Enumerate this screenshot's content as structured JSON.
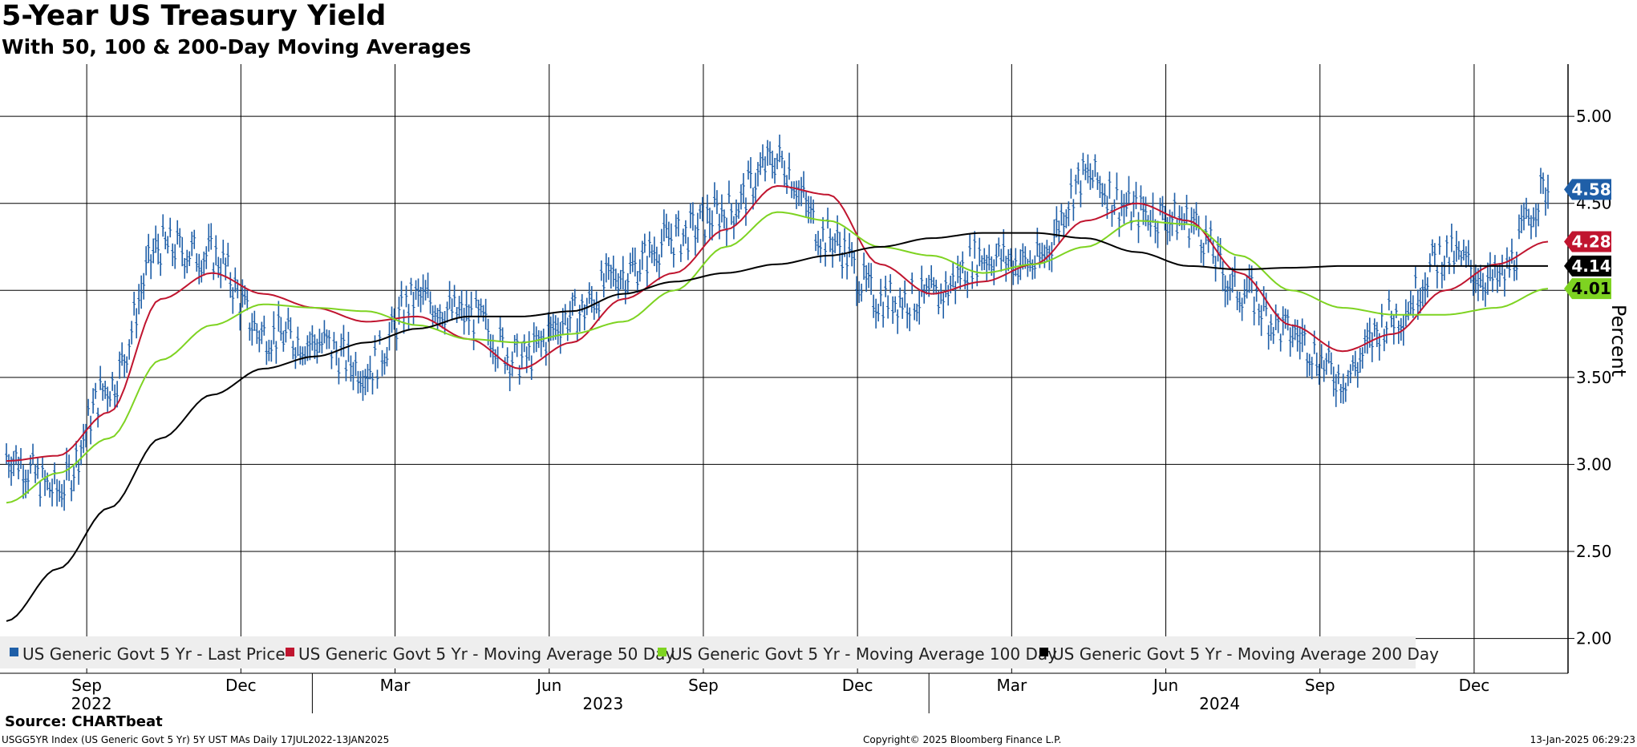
{
  "chart_data": {
    "type": "line",
    "title": "5-Year US Treasury Yield",
    "subtitle": "With 50, 100 & 200-Day Moving Averages",
    "ylabel": "Percent",
    "ylim": [
      1.8,
      5.3
    ],
    "y_ticks": [
      "2.00",
      "2.50",
      "3.00",
      "3.50",
      "4.00",
      "4.50",
      "5.00"
    ],
    "month_labels": [
      "Sep",
      "Dec",
      "Mar",
      "Jun",
      "Sep",
      "Dec",
      "Mar",
      "Jun",
      "Sep",
      "Dec"
    ],
    "year_labels": [
      "2022",
      "2023",
      "2024"
    ],
    "x_months": [
      "2022-07",
      "2022-08",
      "2022-09",
      "2022-10",
      "2022-11",
      "2022-12",
      "2023-01",
      "2023-02",
      "2023-03",
      "2023-04",
      "2023-05",
      "2023-06",
      "2023-07",
      "2023-08",
      "2023-09",
      "2023-10",
      "2023-11",
      "2023-12",
      "2024-01",
      "2024-02",
      "2024-03",
      "2024-04",
      "2024-05",
      "2024-06",
      "2024-07",
      "2024-08",
      "2024-09",
      "2024-10",
      "2024-11",
      "2024-12",
      "2025-01"
    ],
    "series": [
      {
        "name": "US Generic Govt 5 Yr - Last Price",
        "color": "#1f5fa8",
        "style": "hlc-bars",
        "values": [
          3.05,
          2.85,
          3.45,
          4.25,
          4.2,
          3.75,
          3.7,
          3.55,
          3.95,
          3.85,
          3.6,
          3.85,
          4.1,
          4.3,
          4.45,
          4.75,
          4.3,
          3.95,
          3.95,
          4.2,
          4.15,
          4.65,
          4.45,
          4.4,
          4.0,
          3.75,
          3.5,
          3.85,
          4.2,
          4.05,
          4.58
        ]
      },
      {
        "name": "US Generic Govt 5 Yr - Moving Average 50 Day",
        "color": "#c0152f",
        "values": [
          3.02,
          3.05,
          3.3,
          3.95,
          4.1,
          3.98,
          3.9,
          3.82,
          3.85,
          3.72,
          3.55,
          3.7,
          3.95,
          4.1,
          4.35,
          4.6,
          4.55,
          4.15,
          3.98,
          4.05,
          4.15,
          4.4,
          4.5,
          4.4,
          4.1,
          3.8,
          3.65,
          3.75,
          4.0,
          4.15,
          4.28
        ]
      },
      {
        "name": "US Generic Govt 5 Yr - Moving Average 100 Day",
        "color": "#7ed321",
        "values": [
          2.78,
          2.95,
          3.15,
          3.6,
          3.8,
          3.92,
          3.9,
          3.88,
          3.8,
          3.72,
          3.7,
          3.75,
          3.82,
          4.0,
          4.25,
          4.45,
          4.4,
          4.25,
          4.2,
          4.1,
          4.15,
          4.25,
          4.4,
          4.38,
          4.2,
          4.0,
          3.9,
          3.86,
          3.86,
          3.9,
          4.01
        ]
      },
      {
        "name": "US Generic Govt 5 Yr - Moving Average 200 Day",
        "color": "#000000",
        "values": [
          2.1,
          2.4,
          2.75,
          3.15,
          3.4,
          3.55,
          3.62,
          3.7,
          3.78,
          3.85,
          3.85,
          3.88,
          3.98,
          4.05,
          4.1,
          4.15,
          4.2,
          4.25,
          4.3,
          4.33,
          4.33,
          4.3,
          4.22,
          4.14,
          4.12,
          4.13,
          4.14,
          4.14,
          4.14,
          4.14,
          4.14
        ]
      }
    ],
    "last_values": [
      {
        "label": "4.58",
        "value": 4.58,
        "bg": "#1f5fa8",
        "fg": "#ffffff"
      },
      {
        "label": "4.28",
        "value": 4.28,
        "bg": "#c0152f",
        "fg": "#ffffff"
      },
      {
        "label": "4.14",
        "value": 4.14,
        "bg": "#000000",
        "fg": "#ffffff"
      },
      {
        "label": "4.01",
        "value": 4.01,
        "bg": "#7ed321",
        "fg": "#000000"
      }
    ],
    "legend": [
      "US Generic Govt 5 Yr - Last Price",
      "US Generic Govt 5 Yr - Moving Average 50 Day",
      "US Generic Govt 5 Yr - Moving Average 100 Day",
      "US Generic Govt 5 Yr - Moving Average 200 Day"
    ],
    "source": "Source: CHARTbeat",
    "footer_left": "USGG5YR Index (US Generic Govt 5 Yr) 5Y UST MAs  Daily 17JUL2022-13JAN2025",
    "footer_center": "Copyright© 2025 Bloomberg Finance L.P.",
    "footer_right": "13-Jan-2025 06:29:23"
  }
}
